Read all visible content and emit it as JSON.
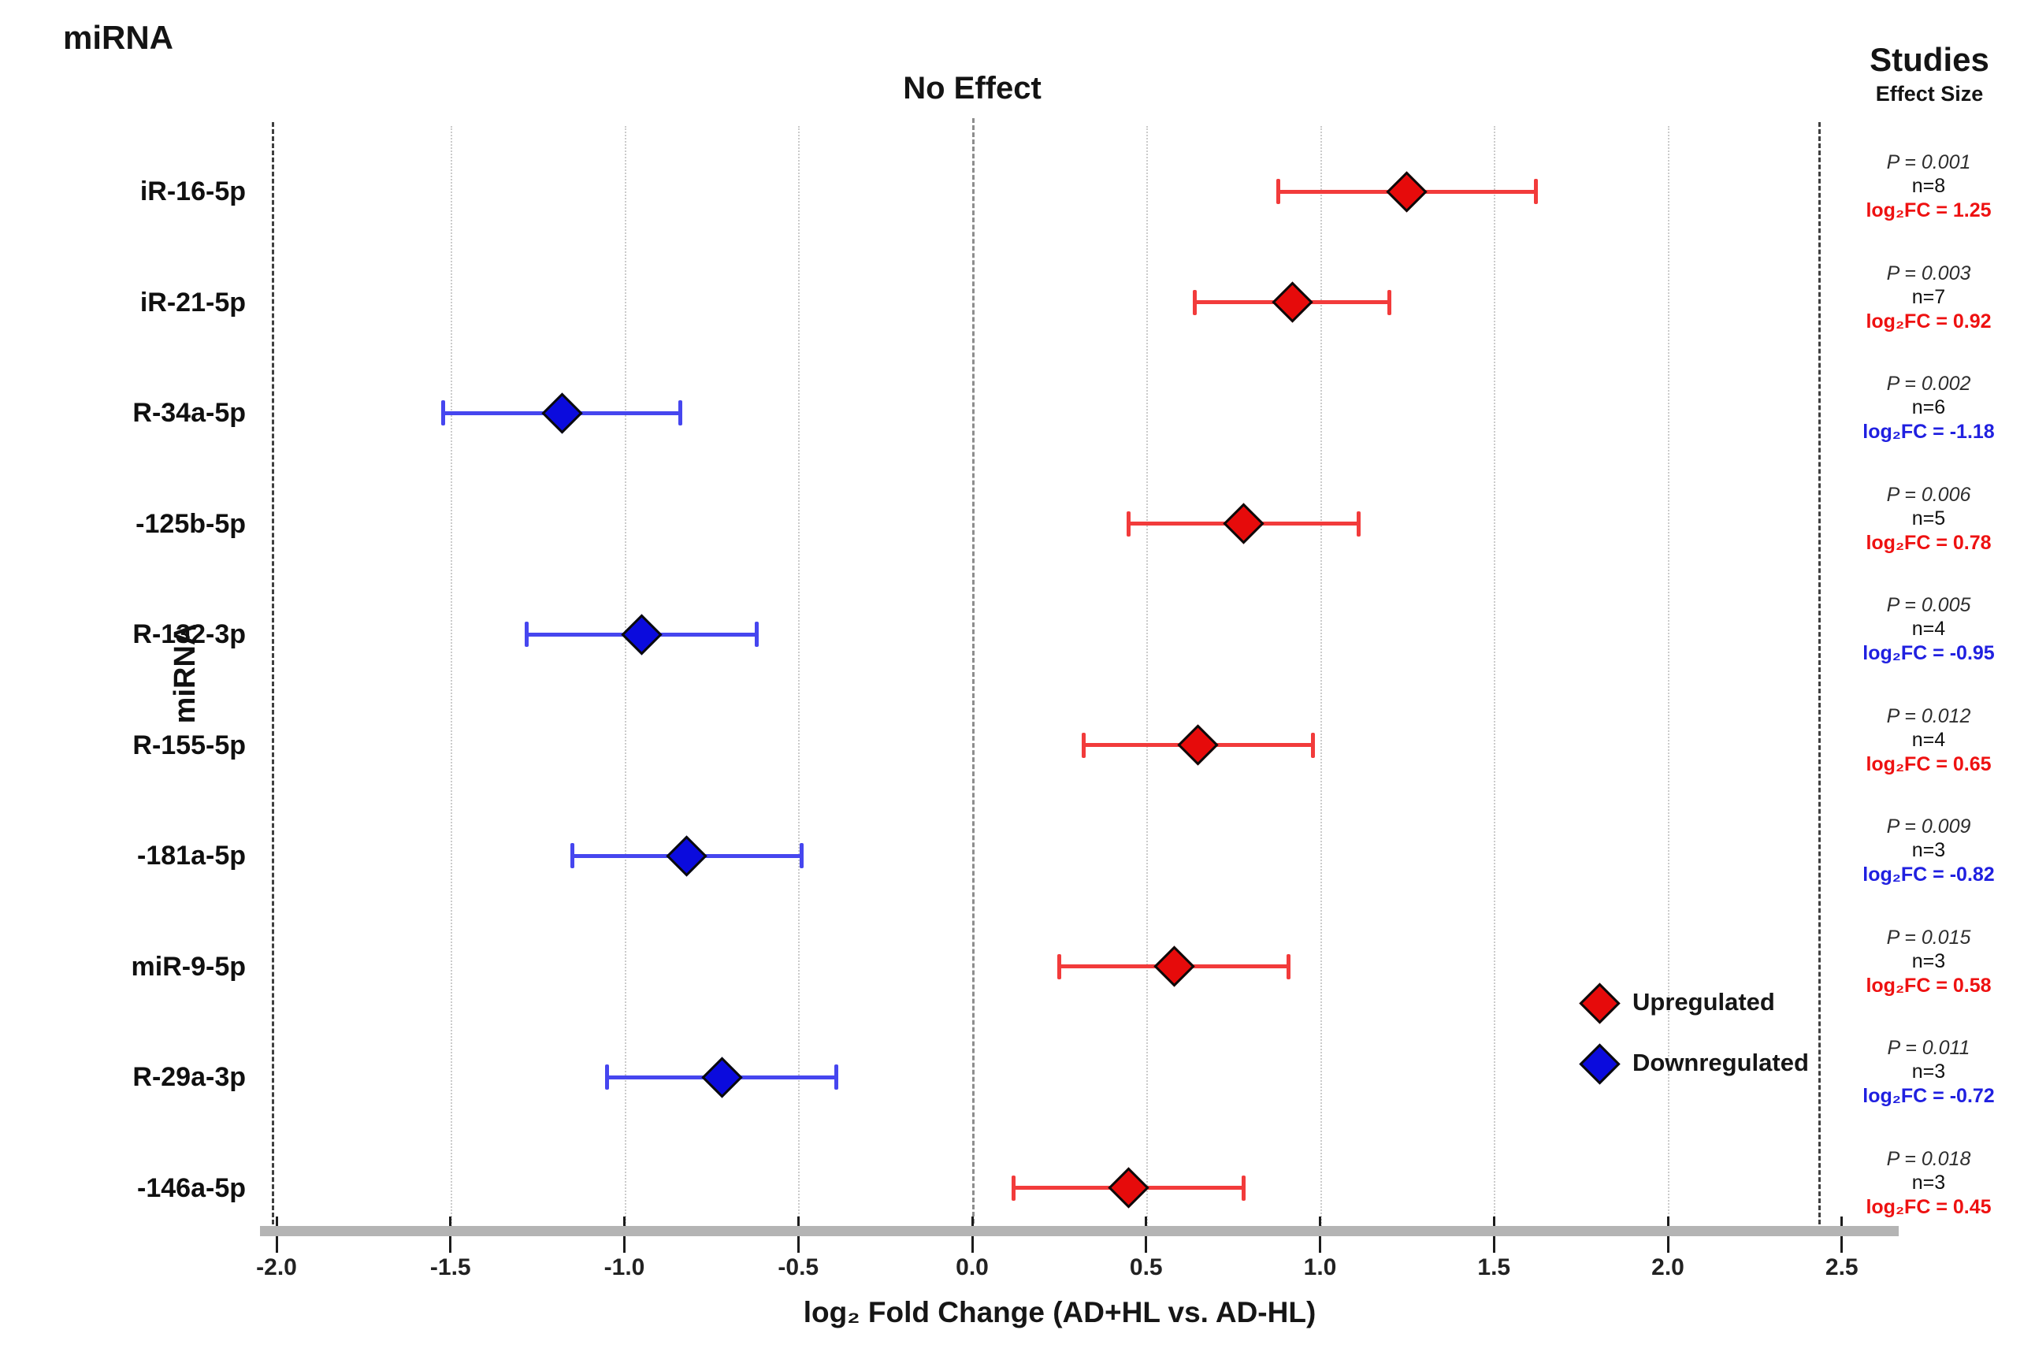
{
  "header": {
    "mirna_label": "miRNA",
    "no_effect_label": "No Effect",
    "studies_label": "Studies",
    "effect_size_label": "Effect Size"
  },
  "colors": {
    "up_marker": "#e60b0b",
    "up_bar": "#f23b3b",
    "up_text": "#ee1111",
    "down_marker": "#0b0bdd",
    "down_bar": "#4646ef",
    "down_text": "#2020e0",
    "marker_outline": "#0a0a0a",
    "zero_line": "#8d8d8d",
    "grid": "#cbcbcb",
    "axis_bar": "#b4b4b4"
  },
  "legend": [
    {
      "label": "Upregulated",
      "direction": "up"
    },
    {
      "label": "Downregulated",
      "direction": "down"
    }
  ],
  "chart_data": {
    "type": "scatter",
    "subtype": "forest-plot",
    "title": "No Effect",
    "xlabel": "log₂ Fold Change (AD+HL vs. AD-HL)",
    "ylabel": "miRNA",
    "xlim": [
      -2.0,
      2.5
    ],
    "x_ticks": [
      -2.0,
      -1.5,
      -1.0,
      -0.5,
      0.0,
      0.5,
      1.0,
      1.5,
      2.0,
      2.5
    ],
    "x_tick_labels": [
      "-2.0",
      "-1.5",
      "-1.0",
      "-0.5",
      "0.0",
      "0.5",
      "1.0",
      "1.5",
      "2.0",
      "2.5"
    ],
    "gridlines_at": [
      -1.5,
      -1.0,
      -0.5,
      0.5,
      1.0,
      1.5,
      2.0
    ],
    "points": [
      {
        "mirna": "iR-16-5p",
        "log2fc": 1.25,
        "ci_low": 0.88,
        "ci_high": 1.62,
        "direction": "up",
        "p": "P = 0.001",
        "n": "n=8",
        "fc": "log₂FC = 1.25"
      },
      {
        "mirna": "iR-21-5p",
        "log2fc": 0.92,
        "ci_low": 0.64,
        "ci_high": 1.2,
        "direction": "up",
        "p": "P = 0.003",
        "n": "n=7",
        "fc": "log₂FC = 0.92"
      },
      {
        "mirna": "R-34a-5p",
        "log2fc": -1.18,
        "ci_low": -1.52,
        "ci_high": -0.84,
        "direction": "down",
        "p": "P = 0.002",
        "n": "n=6",
        "fc": "log₂FC = -1.18"
      },
      {
        "mirna": "-125b-5p",
        "log2fc": 0.78,
        "ci_low": 0.45,
        "ci_high": 1.11,
        "direction": "up",
        "p": "P = 0.006",
        "n": "n=5",
        "fc": "log₂FC = 0.78"
      },
      {
        "mirna": "R-132-3p",
        "log2fc": -0.95,
        "ci_low": -1.28,
        "ci_high": -0.62,
        "direction": "down",
        "p": "P = 0.005",
        "n": "n=4",
        "fc": "log₂FC = -0.95"
      },
      {
        "mirna": "R-155-5p",
        "log2fc": 0.65,
        "ci_low": 0.32,
        "ci_high": 0.98,
        "direction": "up",
        "p": "P = 0.012",
        "n": "n=4",
        "fc": "log₂FC = 0.65"
      },
      {
        "mirna": "-181a-5p",
        "log2fc": -0.82,
        "ci_low": -1.15,
        "ci_high": -0.49,
        "direction": "down",
        "p": "P = 0.009",
        "n": "n=3",
        "fc": "log₂FC = -0.82"
      },
      {
        "mirna": "miR-9-5p",
        "log2fc": 0.58,
        "ci_low": 0.25,
        "ci_high": 0.91,
        "direction": "up",
        "p": "P = 0.015",
        "n": "n=3",
        "fc": "log₂FC = 0.58"
      },
      {
        "mirna": "R-29a-3p",
        "log2fc": -0.72,
        "ci_low": -1.05,
        "ci_high": -0.39,
        "direction": "down",
        "p": "P = 0.011",
        "n": "n=3",
        "fc": "log₂FC = -0.72"
      },
      {
        "mirna": "-146a-5p",
        "log2fc": 0.45,
        "ci_low": 0.12,
        "ci_high": 0.78,
        "direction": "up",
        "p": "P = 0.018",
        "n": "n=3",
        "fc": "log₂FC = 0.45"
      }
    ]
  }
}
